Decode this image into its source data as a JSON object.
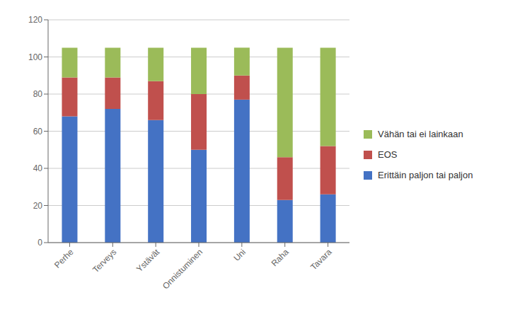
{
  "chart_data": {
    "type": "bar",
    "categories": [
      "Perhe",
      "Terveys",
      "Ystävät",
      "Onnistuminen",
      "Uni",
      "Raha",
      "Tavara"
    ],
    "series": [
      {
        "name": "Erittäin paljon tai paljon",
        "color": "#4472C4",
        "values": [
          68,
          72,
          66,
          50,
          77,
          23,
          26
        ]
      },
      {
        "name": "EOS",
        "color": "#C0504D",
        "values": [
          21,
          17,
          21,
          30,
          13,
          23,
          26
        ]
      },
      {
        "name": "Vähän tai ei lainkaan",
        "color": "#9BBB59",
        "values": [
          16,
          16,
          18,
          25,
          15,
          59,
          53
        ]
      }
    ],
    "ylim": [
      0,
      120
    ],
    "yticks": [
      0,
      20,
      40,
      60,
      80,
      100,
      120
    ],
    "grid": true,
    "stacked": true,
    "legend": "right"
  }
}
